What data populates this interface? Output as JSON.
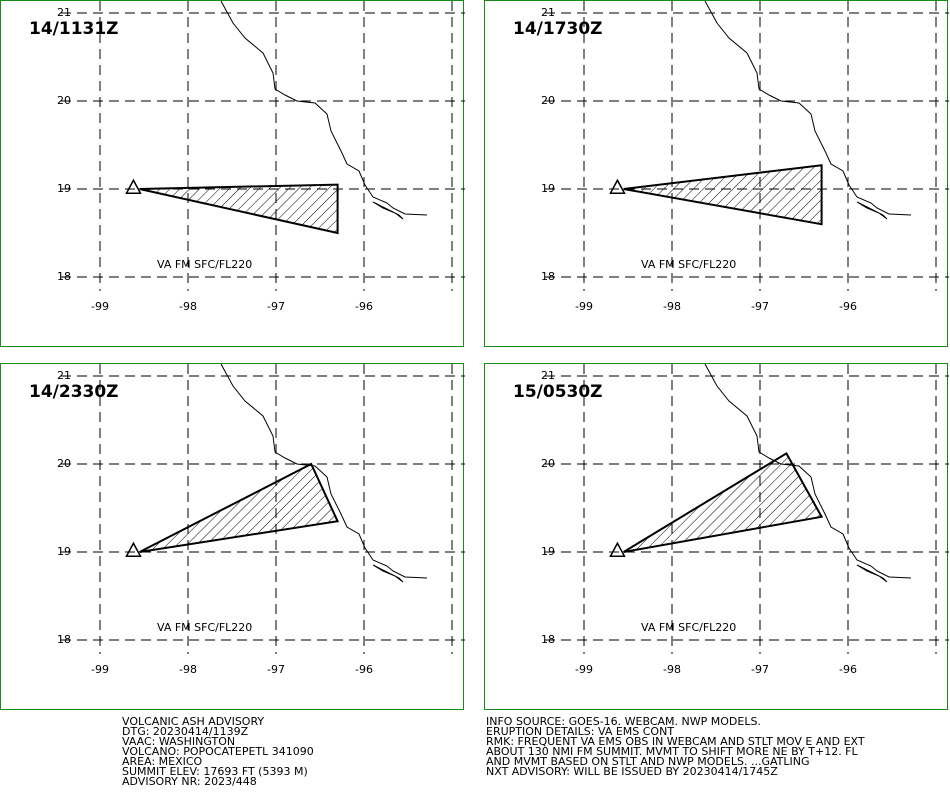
{
  "panels": [
    {
      "time": "14/1131Z",
      "cloud_label": "VA FM SFC/FL220",
      "polygon": [
        [
          -98.55,
          19.0
        ],
        [
          -96.3,
          19.05
        ],
        [
          -96.3,
          18.5
        ],
        [
          -98.55,
          19.0
        ]
      ]
    },
    {
      "time": "14/1730Z",
      "cloud_label": "VA FM SFC/FL220",
      "polygon": [
        [
          -98.55,
          19.0
        ],
        [
          -96.3,
          19.27
        ],
        [
          -96.3,
          18.6
        ],
        [
          -98.55,
          19.0
        ]
      ]
    },
    {
      "time": "14/2330Z",
      "cloud_label": "VA FM SFC/FL220",
      "polygon": [
        [
          -98.55,
          19.0
        ],
        [
          -96.6,
          20.0
        ],
        [
          -96.3,
          19.35
        ],
        [
          -98.55,
          19.0
        ]
      ]
    },
    {
      "time": "15/0530Z",
      "cloud_label": "VA FM SFC/FL220",
      "polygon": [
        [
          -98.55,
          19.0
        ],
        [
          -96.7,
          20.12
        ],
        [
          -96.3,
          19.4
        ],
        [
          -98.55,
          19.0
        ]
      ]
    }
  ],
  "axes": {
    "lat_ticks": [
      "21",
      "20",
      "19",
      "18"
    ],
    "lon_ticks": [
      "-99",
      "-98",
      "-97",
      "-96"
    ]
  },
  "volcano": {
    "name": "POPOCATEPETL",
    "lat": 19.02,
    "lon": -98.62
  },
  "advisory_left": [
    "VOLCANIC ASH ADVISORY",
    "DTG: 20230414/1139Z",
    "VAAC: WASHINGTON",
    "VOLCANO: POPOCATEPETL 341090",
    "AREA: MEXICO",
    "SUMMIT ELEV: 17693 FT (5393 M)",
    "ADVISORY NR: 2023/448"
  ],
  "advisory_right": [
    "INFO SOURCE: GOES-16. WEBCAM. NWP MODELS.",
    "ERUPTION DETAILS: VA EMS CONT",
    "RMK: FREQUENT VA EMS OBS IN WEBCAM AND STLT MOV E AND EXT",
    "ABOUT 130 NMI FM SUMMIT. MVMT TO SHIFT MORE NE BY T+12. FL",
    "AND MVMT BASED ON STLT AND NWP MODELS. ...GATLING",
    "NXT ADVISORY: WILL BE ISSUED BY 20230414/1745Z"
  ],
  "colors": {
    "border": "#1a8a1a",
    "map_line": "#000000",
    "background": "#ffffff"
  }
}
